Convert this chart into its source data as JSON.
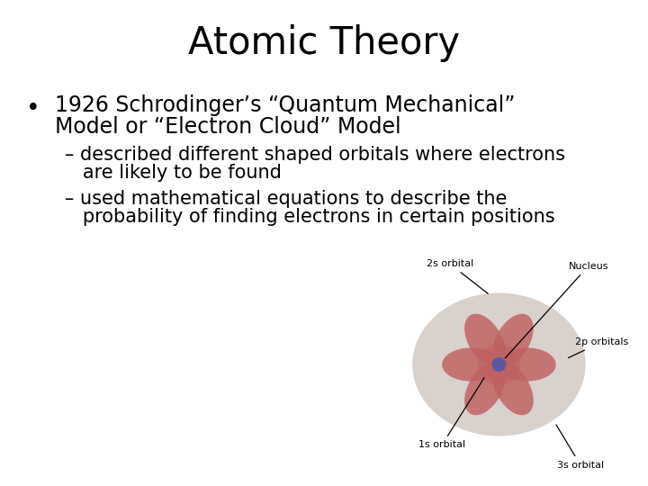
{
  "title": "Atomic Theory",
  "title_fontsize": 30,
  "bg_color": "#ffffff",
  "text_color": "#000000",
  "bullet_text_line1": "1926 Schrodinger’s “Quantum Mechanical”",
  "bullet_text_line2": "Model or “Electron Cloud” Model",
  "bullet_fontsize": 17,
  "sub_bullet1_line1": "– described different shaped orbitals where electrons",
  "sub_bullet1_line2": "   are likely to be found",
  "sub_bullet2_line1": "– used mathematical equations to describe the",
  "sub_bullet2_line2": "   probability of finding electrons in certain positions",
  "sub_bullet_fontsize": 15,
  "label_fontsize": 8,
  "cloud_color": "#d5cec7",
  "petal_color_inner": "#c06060",
  "petal_color_outer": "#d07878",
  "nucleus_color": "#5555aa",
  "s1_color": "#c06060"
}
